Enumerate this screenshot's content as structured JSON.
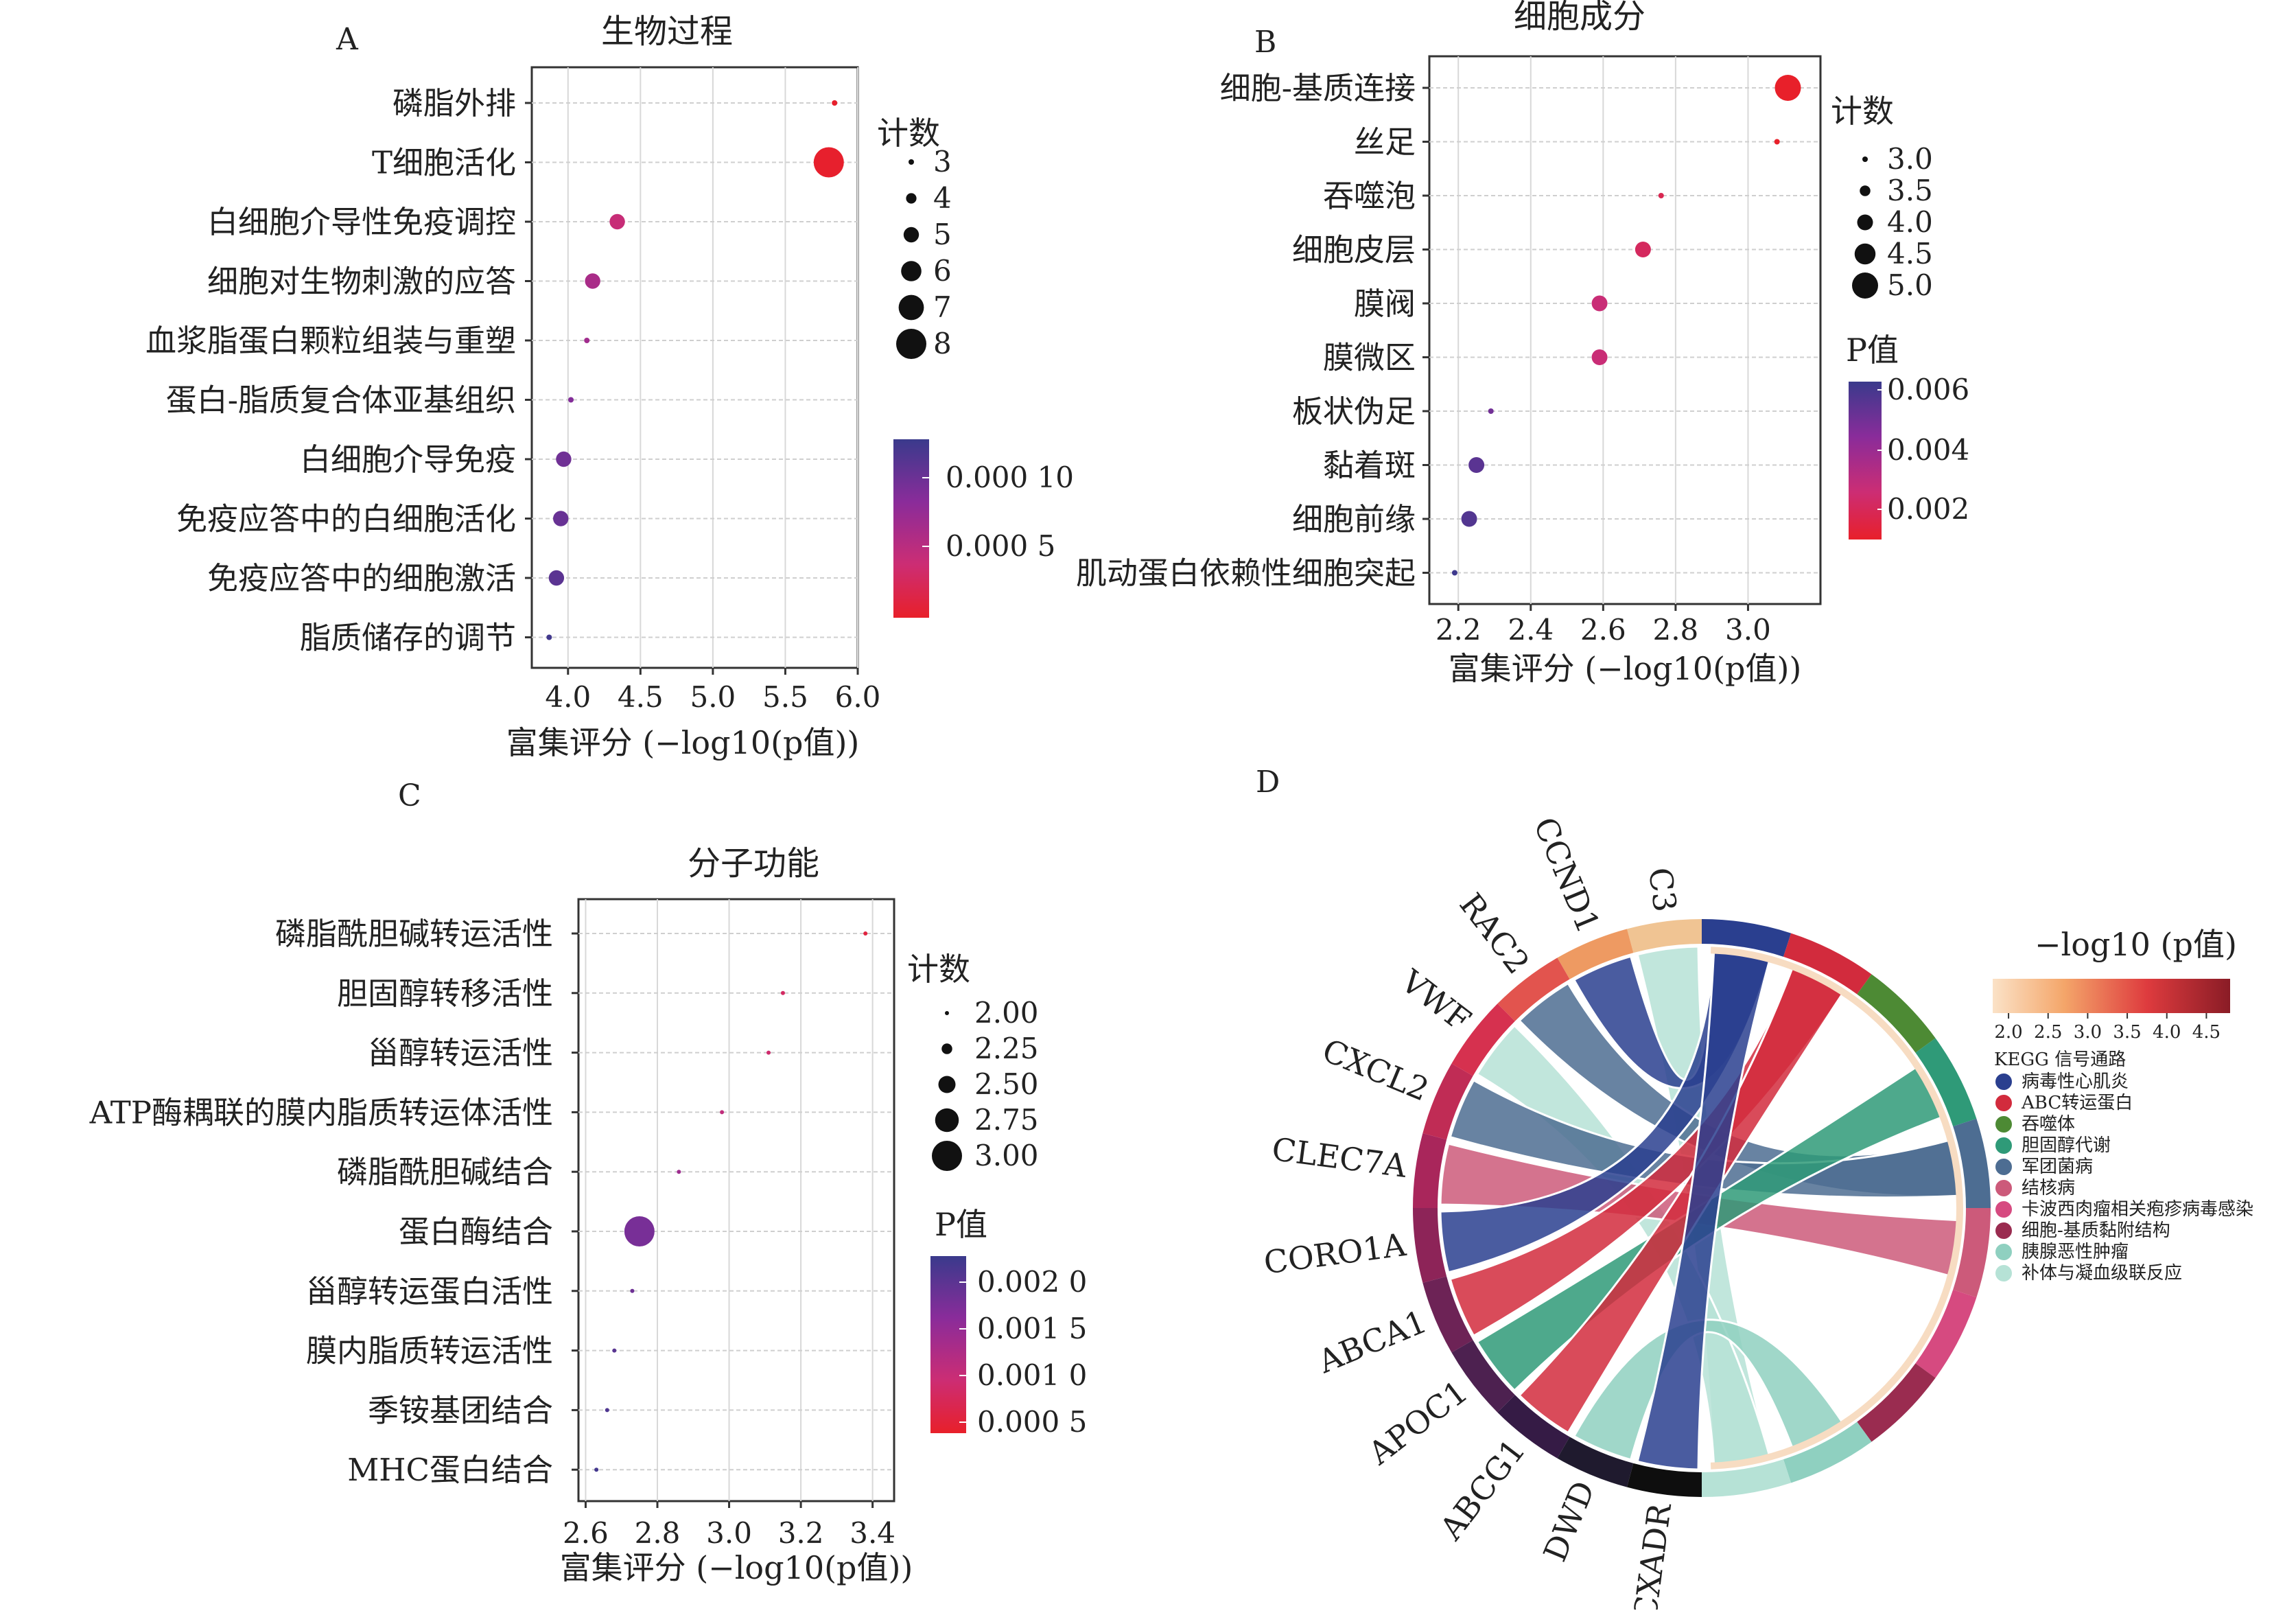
{
  "panels": [
    {
      "letter": "A",
      "title": "生物过程",
      "xlabel": "富集评分 (−log10(p值))",
      "size_legend_title": "计数",
      "color_legend_title": ""
    },
    {
      "letter": "B",
      "title": "细胞成分",
      "xlabel": "富集评分 (−log10(p值))",
      "size_legend_title": "计数",
      "color_legend_title": "P值"
    },
    {
      "letter": "C",
      "title": "分子功能",
      "xlabel": "富集评分 (−log10(p值))",
      "size_legend_title": "计数",
      "color_legend_title": "P值"
    },
    {
      "letter": "D",
      "title": "",
      "color_legend_title": "−log10 (p值)",
      "pathway_legend_title": "KEGG 信号通路"
    }
  ],
  "colors": {
    "low_p": "#e8202a",
    "mid_p": "#c42a7c",
    "high_p": "#5a2f9a",
    "max_p": "#3a3a8c"
  },
  "chart_data": [
    {
      "type": "scatter",
      "panel": "A",
      "title": "生物过程",
      "xlabel": "富集评分 (−log10(p值))",
      "xlim": [
        3.75,
        6.0
      ],
      "xticks": [
        "4.0",
        "4.5",
        "5.0",
        "5.5",
        "6.0"
      ],
      "xtick_values": [
        4.0,
        4.5,
        5.0,
        5.5,
        6.0
      ],
      "grid": true,
      "categories": [
        "磷脂外排",
        "T细胞活化",
        "白细胞介导性免疫调控",
        "细胞对生物刺激的应答",
        "血浆脂蛋白颗粒组装与重塑",
        "蛋白-脂质复合体亚基组织",
        "白细胞介导免疫",
        "免疫应答中的白细胞活化",
        "免疫应答中的细胞激活",
        "脂质储存的调节"
      ],
      "x": [
        5.84,
        5.8,
        4.34,
        4.17,
        4.13,
        4.02,
        3.97,
        3.95,
        3.92,
        3.87
      ],
      "count": [
        3,
        8,
        5,
        5,
        3,
        3,
        5,
        5,
        5,
        3
      ],
      "p": [
        1.5e-06,
        1.6e-06,
        4.6e-05,
        6.8e-05,
        7.4e-05,
        9.5e-05,
        0.000107,
        0.000112,
        0.00012,
        0.000135
      ],
      "size_legend": {
        "title": "计数",
        "values": [
          3,
          4,
          5,
          6,
          7,
          8
        ],
        "labels": [
          "3",
          "4",
          "5",
          "6",
          "7",
          "8"
        ]
      },
      "color_legend": {
        "title": "",
        "labels": [
          "0.000 10",
          "0.000 5"
        ],
        "range": [
          0,
          0.00014
        ]
      }
    },
    {
      "type": "scatter",
      "panel": "B",
      "title": "细胞成分",
      "xlabel": "富集评分 (−log10(p值))",
      "xlim": [
        2.12,
        3.2
      ],
      "xticks": [
        "2.2",
        "2.4",
        "2.6",
        "2.8",
        "3.0"
      ],
      "xtick_values": [
        2.2,
        2.4,
        2.6,
        2.8,
        3.0
      ],
      "grid": true,
      "categories": [
        "细胞-基质连接",
        "丝足",
        "吞噬泡",
        "细胞皮层",
        "膜阀",
        "膜微区",
        "板状伪足",
        "黏着斑",
        "细胞前缘",
        "肌动蛋白依赖性细胞突起"
      ],
      "x": [
        3.11,
        3.08,
        2.76,
        2.71,
        2.59,
        2.59,
        2.29,
        2.25,
        2.23,
        2.19
      ],
      "count": [
        5,
        3,
        3,
        4,
        4,
        4,
        3,
        4,
        4,
        3
      ],
      "p": [
        0.0008,
        0.0008,
        0.0017,
        0.002,
        0.0026,
        0.0026,
        0.0051,
        0.0057,
        0.0059,
        0.0064
      ],
      "size_legend": {
        "title": "计数",
        "values": [
          3.0,
          3.5,
          4.0,
          4.5,
          5.0
        ],
        "labels": [
          "3.0",
          "3.5",
          "4.0",
          "4.5",
          "5.0"
        ]
      },
      "color_legend": {
        "title": "P值",
        "labels": [
          "0.006",
          "0.004",
          "0.002"
        ],
        "range": [
          0.0008,
          0.0065
        ]
      }
    },
    {
      "type": "scatter",
      "panel": "C",
      "title": "分子功能",
      "xlabel": "富集评分 (−log10(p值))",
      "xlim": [
        2.58,
        3.46
      ],
      "xticks": [
        "2.6",
        "2.8",
        "3.0",
        "3.2",
        "3.4"
      ],
      "xtick_values": [
        2.6,
        2.8,
        3.0,
        3.2,
        3.4
      ],
      "grid": true,
      "categories": [
        "磷脂酰胆碱转运活性",
        "胆固醇转移活性",
        "甾醇转运活性",
        "ATP酶耦联的膜内脂质转运体活性",
        "磷脂酰胆碱结合",
        "蛋白酶结合",
        "甾醇转运蛋白活性",
        "膜内脂质转运活性",
        "季铵基团结合",
        "MHC蛋白结合"
      ],
      "x": [
        3.38,
        3.15,
        3.11,
        2.98,
        2.86,
        2.75,
        2.73,
        2.68,
        2.66,
        2.63
      ],
      "count": [
        2,
        2,
        2,
        2,
        2,
        3,
        2,
        2,
        2,
        2
      ],
      "p": [
        0.0004,
        0.0007,
        0.0008,
        0.001,
        0.0014,
        0.0018,
        0.0019,
        0.0021,
        0.0022,
        0.0023
      ],
      "size_legend": {
        "title": "计数",
        "values": [
          2.0,
          2.25,
          2.5,
          2.75,
          3.0
        ],
        "labels": [
          "2.00",
          "2.25",
          "2.50",
          "2.75",
          "3.00"
        ]
      },
      "color_legend": {
        "title": "P值",
        "labels": [
          "0.002 0",
          "0.001 5",
          "0.001 0",
          "0.000 5"
        ],
        "range": [
          0.0002,
          0.0024
        ]
      }
    },
    {
      "type": "chord",
      "panel": "D",
      "genes": [
        "C3",
        "CCND1",
        "RAC2",
        "VWF",
        "CXCL2",
        "CLEC7A",
        "CORO1A",
        "ABCA1",
        "APOC1",
        "ABCG1",
        "DWD",
        "CXADR"
      ],
      "gene_colors": [
        "#f0c493",
        "#ee9a62",
        "#e2544e",
        "#d6314f",
        "#c02c55",
        "#a9265b",
        "#8d2458",
        "#6d2356",
        "#4d2150",
        "#351b45",
        "#1f1a2e",
        "#0e0e0e"
      ],
      "pathways": [
        "病毒性心肌炎",
        "ABC转运蛋白",
        "吞噬体",
        "胆固醇代谢",
        "军团菌病",
        "结核病",
        "卡波西肉瘤相关疱疹病毒感染",
        "细胞-基质黏附结构",
        "胰腺恶性肿瘤",
        "补体与凝血级联反应"
      ],
      "pathway_colors": [
        "#2a3f8f",
        "#d22b3d",
        "#4d8a34",
        "#2f9a78",
        "#4d6d92",
        "#cc5a7a",
        "#d64a80",
        "#9a2c50",
        "#8fd0c0",
        "#b6e2d6"
      ],
      "color_legend": {
        "title": "−log10 (p值)",
        "ticks": [
          "2.0",
          "2.5",
          "3.0",
          "3.5",
          "4.0",
          "4.5"
        ],
        "range": [
          1.8,
          4.8
        ]
      },
      "chord_pathway_for_gene": [
        9,
        0,
        4,
        9,
        4,
        5,
        0,
        1,
        3,
        1,
        8,
        0
      ]
    }
  ]
}
